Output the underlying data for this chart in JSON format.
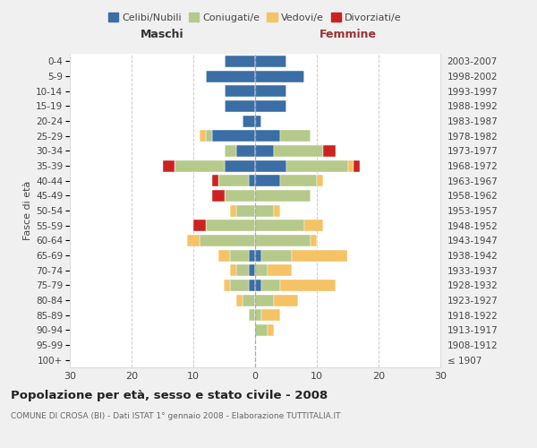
{
  "age_groups": [
    "100+",
    "95-99",
    "90-94",
    "85-89",
    "80-84",
    "75-79",
    "70-74",
    "65-69",
    "60-64",
    "55-59",
    "50-54",
    "45-49",
    "40-44",
    "35-39",
    "30-34",
    "25-29",
    "20-24",
    "15-19",
    "10-14",
    "5-9",
    "0-4"
  ],
  "birth_years": [
    "≤ 1907",
    "1908-1912",
    "1913-1917",
    "1918-1922",
    "1923-1927",
    "1928-1932",
    "1933-1937",
    "1938-1942",
    "1943-1947",
    "1948-1952",
    "1953-1957",
    "1958-1962",
    "1963-1967",
    "1968-1972",
    "1973-1977",
    "1978-1982",
    "1983-1987",
    "1988-1992",
    "1993-1997",
    "1998-2002",
    "2003-2007"
  ],
  "male_celibi": [
    0,
    0,
    0,
    0,
    0,
    1,
    1,
    1,
    0,
    0,
    0,
    0,
    1,
    5,
    3,
    7,
    2,
    5,
    5,
    8,
    5
  ],
  "male_coniugati": [
    0,
    0,
    0,
    1,
    2,
    3,
    2,
    3,
    9,
    8,
    3,
    5,
    5,
    8,
    2,
    1,
    0,
    0,
    0,
    0,
    0
  ],
  "male_vedovi": [
    0,
    0,
    0,
    0,
    1,
    1,
    1,
    2,
    2,
    0,
    1,
    0,
    0,
    0,
    0,
    1,
    0,
    0,
    0,
    0,
    0
  ],
  "male_divorziati": [
    0,
    0,
    0,
    0,
    0,
    0,
    0,
    0,
    0,
    2,
    0,
    2,
    1,
    2,
    0,
    0,
    0,
    0,
    0,
    0,
    0
  ],
  "female_nubili": [
    0,
    0,
    0,
    0,
    0,
    1,
    0,
    1,
    0,
    0,
    0,
    0,
    4,
    5,
    3,
    4,
    1,
    5,
    5,
    8,
    5
  ],
  "female_coniugate": [
    0,
    0,
    2,
    1,
    3,
    3,
    2,
    5,
    9,
    8,
    3,
    9,
    6,
    10,
    8,
    5,
    0,
    0,
    0,
    0,
    0
  ],
  "female_vedove": [
    0,
    0,
    1,
    3,
    4,
    9,
    4,
    9,
    1,
    3,
    1,
    0,
    1,
    1,
    0,
    0,
    0,
    0,
    0,
    0,
    0
  ],
  "female_divorziate": [
    0,
    0,
    0,
    0,
    0,
    0,
    0,
    0,
    0,
    0,
    0,
    0,
    0,
    1,
    2,
    0,
    0,
    0,
    0,
    0,
    0
  ],
  "color_celibi": "#3a6ea5",
  "color_coniugati": "#b5c98a",
  "color_vedovi": "#f5c265",
  "color_divorziati": "#cc2222",
  "xlim": 30,
  "title": "Popolazione per età, sesso e stato civile - 2008",
  "subtitle": "COMUNE DI CROSA (BI) - Dati ISTAT 1° gennaio 2008 - Elaborazione TUTTITALIA.IT",
  "ylabel_left": "Fasce di età",
  "label_maschi": "Maschi",
  "label_femmine": "Femmine",
  "legend_labels": [
    "Celibi/Nubili",
    "Coniugati/e",
    "Vedovi/e",
    "Divorziati/e"
  ],
  "bg_fig": "#f0f0f0",
  "bg_ax": "#ffffff"
}
